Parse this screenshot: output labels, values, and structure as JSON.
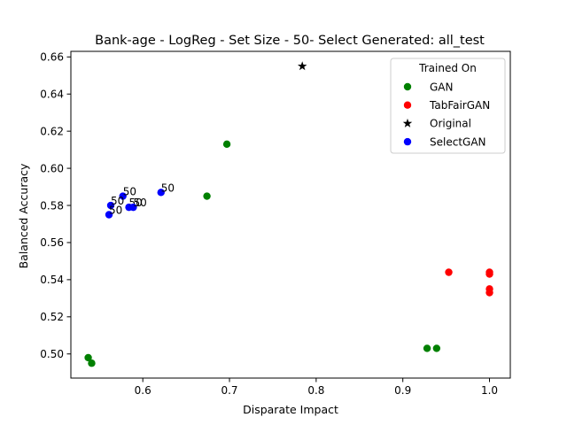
{
  "chart_data": {
    "type": "scatter",
    "title": "Bank-age - LogReg - Set Size - 50- Select Generated: all_test",
    "xlabel": "Disparate Impact",
    "ylabel": "Balanced Accuracy",
    "xlim": [
      0.517,
      1.024
    ],
    "ylim": [
      0.487,
      0.663
    ],
    "xticks": [
      0.6,
      0.7,
      0.8,
      0.9,
      1.0
    ],
    "xtick_labels": [
      "0.6",
      "0.7",
      "0.8",
      "0.9",
      "1.0"
    ],
    "yticks": [
      0.5,
      0.52,
      0.54,
      0.56,
      0.58,
      0.6,
      0.62,
      0.64,
      0.66
    ],
    "ytick_labels": [
      "0.50",
      "0.52",
      "0.54",
      "0.56",
      "0.58",
      "0.60",
      "0.62",
      "0.64",
      "0.66"
    ],
    "grid": false,
    "legend": {
      "title": "Trained On",
      "placement": "top-right",
      "entries": [
        {
          "label": "GAN",
          "color": "#008000",
          "marker": "circle"
        },
        {
          "label": "TabFairGAN",
          "color": "#ff0000",
          "marker": "circle"
        },
        {
          "label": "Original",
          "color": "#000000",
          "marker": "star"
        },
        {
          "label": "SelectGAN",
          "color": "#0000ff",
          "marker": "circle"
        }
      ]
    },
    "series": [
      {
        "name": "GAN",
        "color": "#008000",
        "marker": "circle",
        "points": [
          {
            "x": 0.697,
            "y": 0.613
          },
          {
            "x": 0.674,
            "y": 0.585
          },
          {
            "x": 0.537,
            "y": 0.498
          },
          {
            "x": 0.541,
            "y": 0.495
          },
          {
            "x": 0.928,
            "y": 0.503
          },
          {
            "x": 0.939,
            "y": 0.503
          }
        ]
      },
      {
        "name": "TabFairGAN",
        "color": "#ff0000",
        "marker": "circle",
        "points": [
          {
            "x": 0.953,
            "y": 0.544
          },
          {
            "x": 1.0,
            "y": 0.544
          },
          {
            "x": 1.0,
            "y": 0.543
          },
          {
            "x": 1.0,
            "y": 0.535
          },
          {
            "x": 1.0,
            "y": 0.533
          }
        ]
      },
      {
        "name": "Original",
        "color": "#000000",
        "marker": "star",
        "points": [
          {
            "x": 0.784,
            "y": 0.655
          }
        ]
      },
      {
        "name": "SelectGAN",
        "color": "#0000ff",
        "marker": "circle",
        "points": [
          {
            "x": 0.621,
            "y": 0.587,
            "label": "50"
          },
          {
            "x": 0.577,
            "y": 0.585,
            "label": "50"
          },
          {
            "x": 0.563,
            "y": 0.58,
            "label": "50"
          },
          {
            "x": 0.584,
            "y": 0.579,
            "label": "50"
          },
          {
            "x": 0.589,
            "y": 0.579,
            "label": "50"
          },
          {
            "x": 0.561,
            "y": 0.575,
            "label": "50"
          }
        ]
      }
    ]
  }
}
